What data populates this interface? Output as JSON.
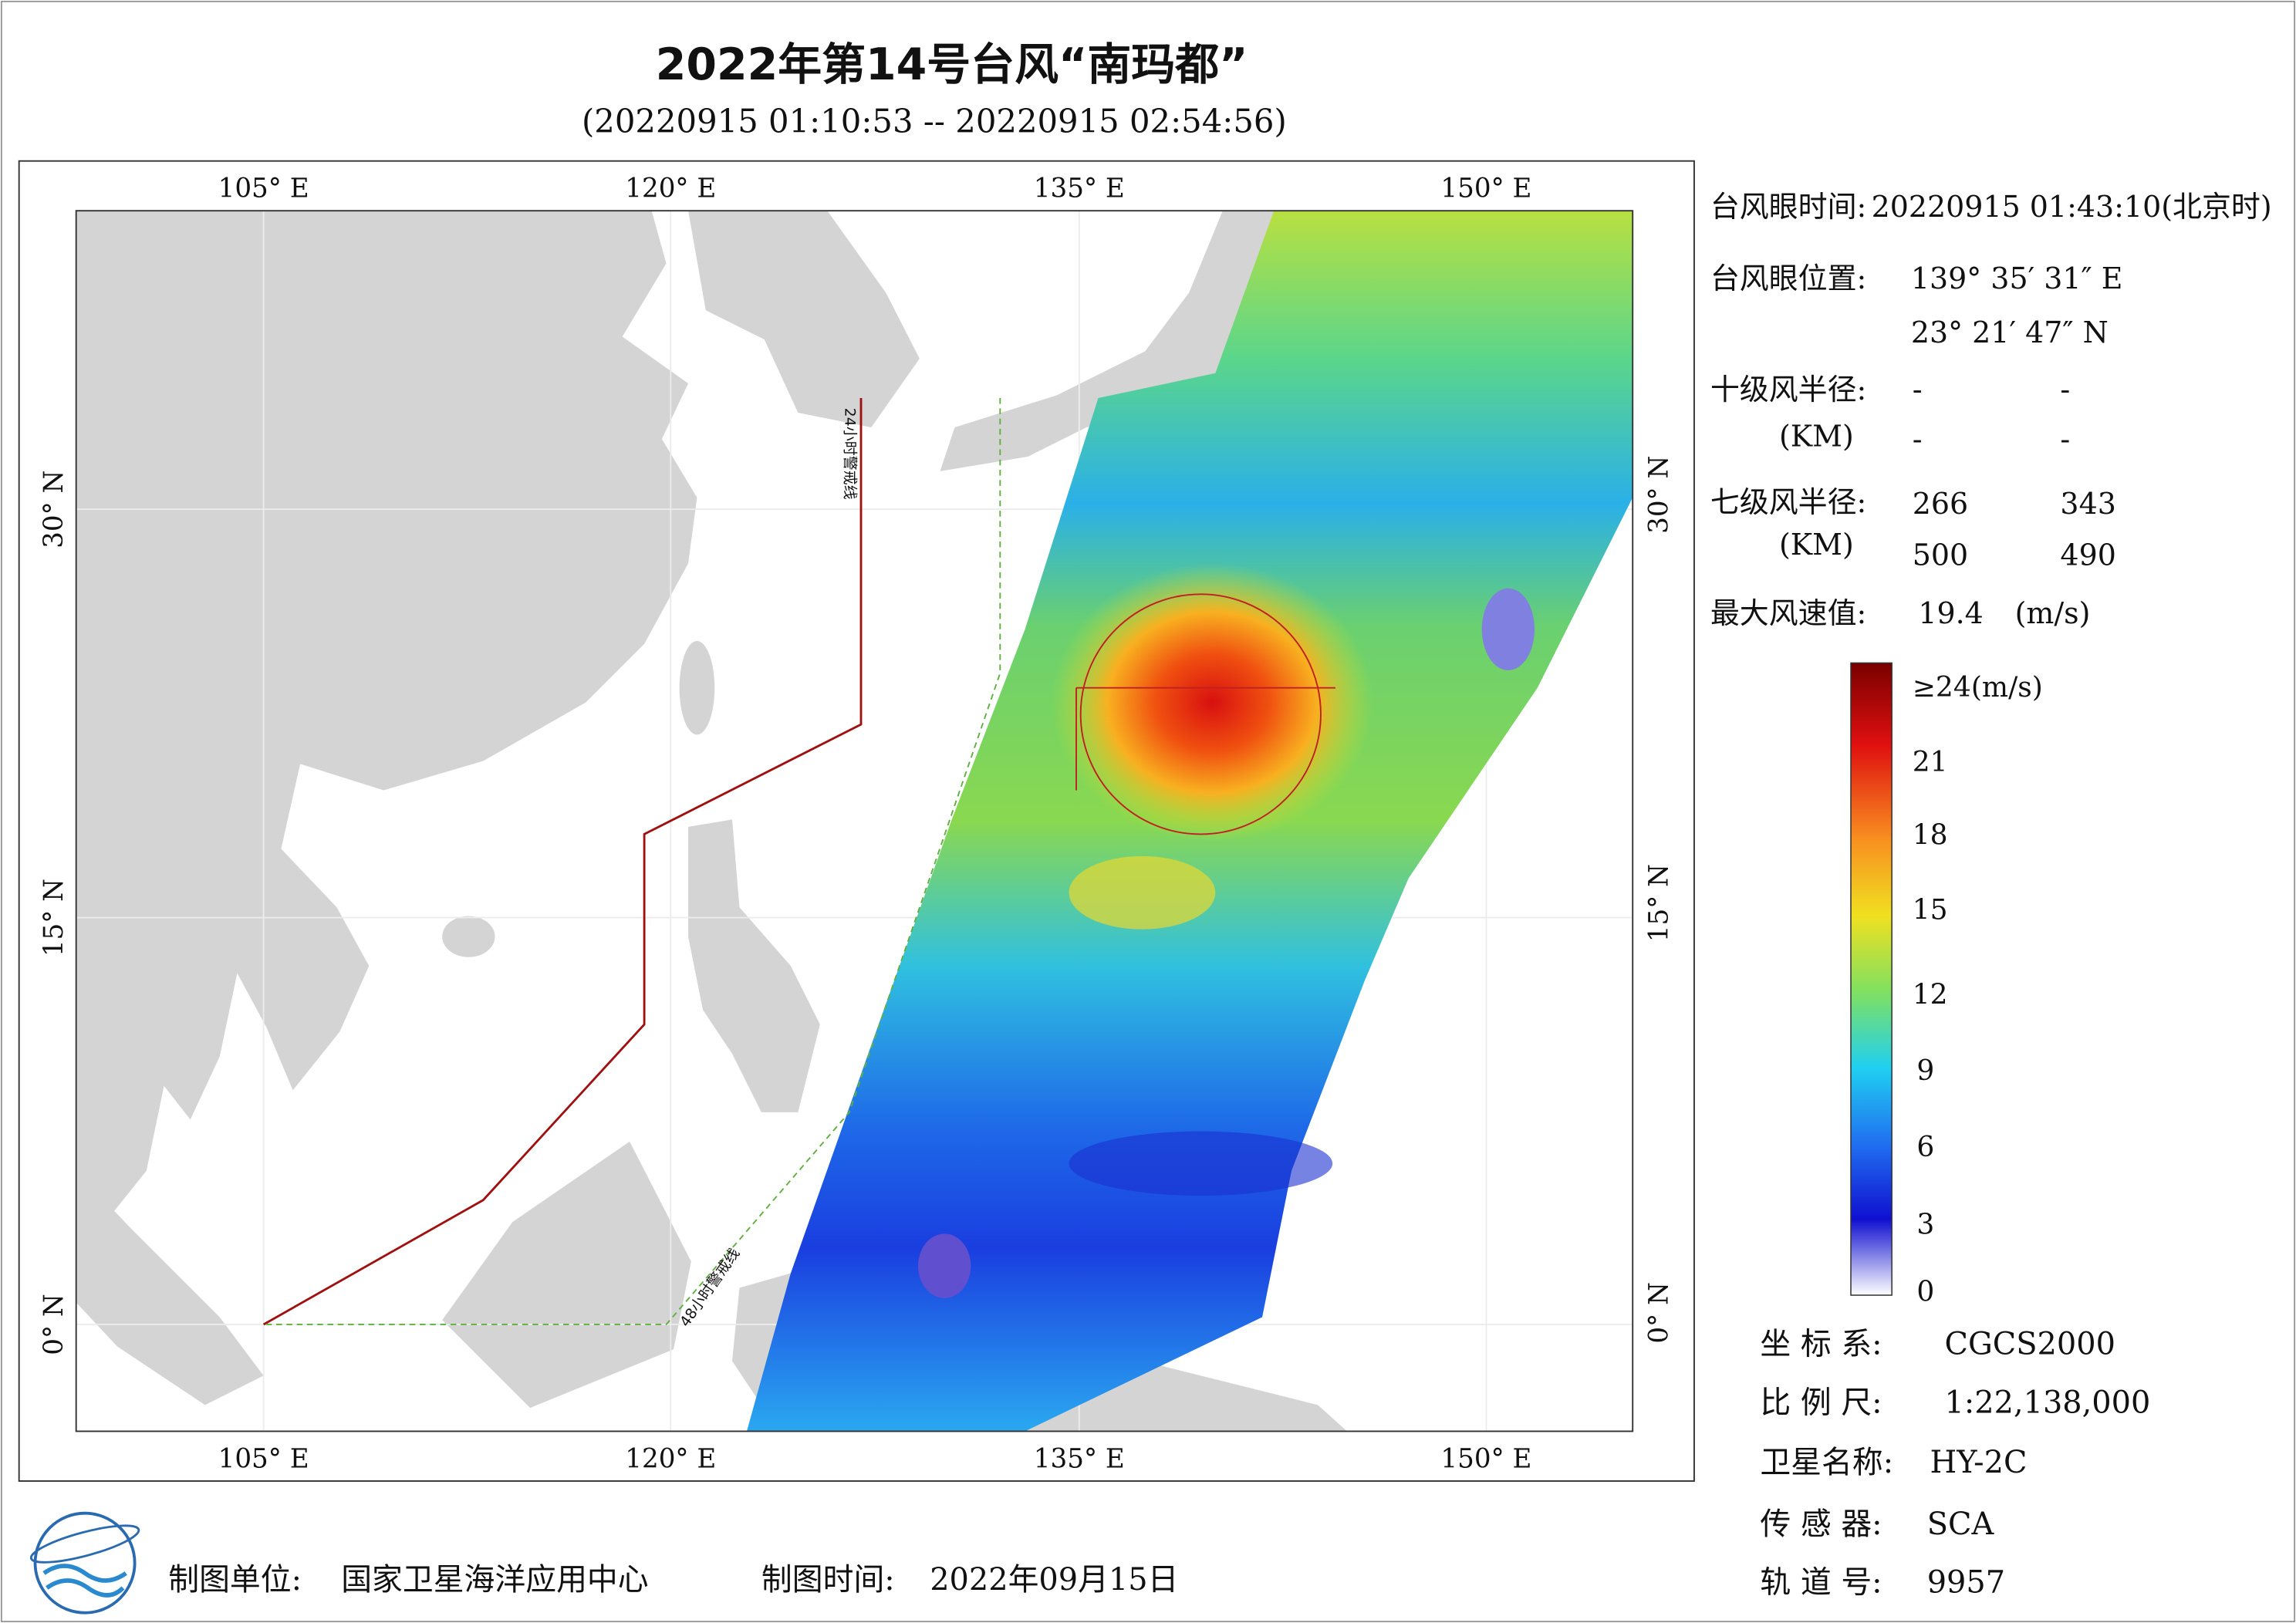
{
  "title": "2022年第14号台风“南玛都”",
  "subtitle": "(20220915 01:10:53 -- 20220915 02:54:56)",
  "map": {
    "lon_labels": [
      "105° E",
      "120° E",
      "135° E",
      "150° E"
    ],
    "lat_labels": [
      "30° N",
      "15° N",
      "0° N"
    ],
    "warning_lines": [
      "24小时警戒线",
      "48小时警戒线"
    ]
  },
  "info": {
    "eye_time": {
      "label": "台风眼时间:",
      "value": "20220915 01:43:10(北京时)"
    },
    "eye_position": {
      "label": "台风眼位置:",
      "lon": "139° 35′ 31″ E",
      "lat": "23° 21′ 47″ N"
    },
    "radius_10": {
      "label": "十级风半径:",
      "unit": "(KM)",
      "values": [
        "-",
        "-",
        "-",
        "-"
      ]
    },
    "radius_7": {
      "label": "七级风半径:",
      "unit": "(KM)",
      "values": [
        266,
        343,
        500,
        490
      ]
    },
    "max_wind": {
      "label": "最大风速值:",
      "value": 19.4,
      "unit": "(m/s)"
    }
  },
  "colorbar": {
    "labels": [
      "≥24(m/s)",
      "21",
      "18",
      "15",
      "12",
      "9",
      "6",
      "3",
      "0"
    ]
  },
  "meta": [
    {
      "label": "坐 标 系:",
      "value": "CGCS2000"
    },
    {
      "label": "比 例 尺:",
      "value": "1:22,138,000"
    },
    {
      "label": "卫星名称:",
      "value": "HY-2C"
    },
    {
      "label": "传 感 器:",
      "value": "SCA"
    },
    {
      "label": "轨 道 号:",
      "value": "9957"
    }
  ],
  "footer": {
    "producer_label": "制图单位:",
    "producer": "国家卫星海洋应用中心",
    "time_label": "制图时间:",
    "time": "2022年09月15日"
  }
}
